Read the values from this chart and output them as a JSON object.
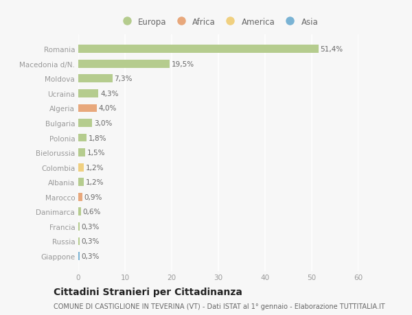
{
  "countries": [
    "Romania",
    "Macedonia d/N.",
    "Moldova",
    "Ucraina",
    "Algeria",
    "Bulgaria",
    "Polonia",
    "Bielorussia",
    "Colombia",
    "Albania",
    "Marocco",
    "Danimarca",
    "Francia",
    "Russia",
    "Giappone"
  ],
  "values": [
    51.4,
    19.5,
    7.3,
    4.3,
    4.0,
    3.0,
    1.8,
    1.5,
    1.2,
    1.2,
    0.9,
    0.6,
    0.3,
    0.3,
    0.3
  ],
  "labels": [
    "51,4%",
    "19,5%",
    "7,3%",
    "4,3%",
    "4,0%",
    "3,0%",
    "1,8%",
    "1,5%",
    "1,2%",
    "1,2%",
    "0,9%",
    "0,6%",
    "0,3%",
    "0,3%",
    "0,3%"
  ],
  "categories": [
    "Europa",
    "Africa",
    "America",
    "Asia"
  ],
  "continent": [
    "Europa",
    "Europa",
    "Europa",
    "Europa",
    "Africa",
    "Europa",
    "Europa",
    "Europa",
    "America",
    "Europa",
    "Africa",
    "Europa",
    "Europa",
    "Europa",
    "Asia"
  ],
  "colors": {
    "Europa": "#b5cc8e",
    "Africa": "#e8a87c",
    "America": "#f0d080",
    "Asia": "#7ab3d4"
  },
  "legend_colors": [
    "#b5cc8e",
    "#e8a87c",
    "#f0d080",
    "#7ab3d4"
  ],
  "bg_color": "#f7f7f7",
  "plot_bg_color": "#f7f7f7",
  "title": "Cittadini Stranieri per Cittadinanza",
  "subtitle": "COMUNE DI CASTIGLIONE IN TEVERINA (VT) - Dati ISTAT al 1° gennaio - Elaborazione TUTTITALIA.IT",
  "xlim": [
    0,
    60
  ],
  "xticks": [
    0,
    10,
    20,
    30,
    40,
    50,
    60
  ],
  "title_fontsize": 10,
  "subtitle_fontsize": 7,
  "label_fontsize": 7.5,
  "tick_fontsize": 7.5,
  "legend_fontsize": 8.5
}
